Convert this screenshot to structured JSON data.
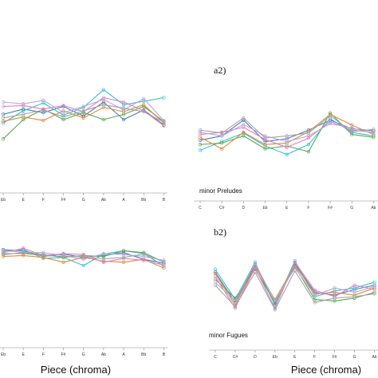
{
  "chart_data": [
    {
      "type": "line",
      "id": "a1",
      "label": "",
      "caption": "",
      "xlabel": "",
      "categories": [
        "Eb",
        "E",
        "F",
        "F#",
        "G",
        "Ab",
        "A",
        "Bb",
        "B"
      ],
      "ylim": [
        0,
        10
      ],
      "series": [
        {
          "color": "#4a7ab8",
          "values": [
            5.6,
            6.2,
            5.8,
            6.5,
            5.4,
            7.0,
            5.0,
            6.1,
            4.4
          ]
        },
        {
          "color": "#33c3d6",
          "values": [
            4.6,
            6.0,
            6.9,
            5.5,
            6.4,
            8.4,
            6.7,
            7.1,
            7.5
          ]
        },
        {
          "color": "#5aaa50",
          "values": [
            2.8,
            5.0,
            6.2,
            5.0,
            5.8,
            5.0,
            5.6,
            6.5,
            4.8
          ]
        },
        {
          "color": "#e08a3c",
          "values": [
            4.8,
            5.3,
            4.9,
            6.0,
            5.2,
            6.4,
            5.9,
            6.7,
            4.6
          ]
        },
        {
          "color": "#e27dc3",
          "values": [
            6.5,
            6.6,
            6.2,
            6.6,
            5.9,
            7.5,
            7.0,
            6.0,
            4.3
          ]
        },
        {
          "color": "#b8a8d8",
          "values": [
            7.0,
            6.8,
            7.2,
            5.8,
            6.5,
            7.3,
            6.1,
            7.4,
            4.9
          ]
        },
        {
          "color": "#a4a4a4",
          "values": [
            5.2,
            5.6,
            6.1,
            5.3,
            6.0,
            6.7,
            6.3,
            5.9,
            4.7
          ]
        }
      ]
    },
    {
      "type": "line",
      "id": "a2",
      "label": "a2)",
      "caption": "minor Preludes",
      "xlabel": "Piece (chroma)",
      "categories": [
        "C",
        "C#",
        "D",
        "Eb",
        "E",
        "F",
        "F#",
        "G",
        "Ab"
      ],
      "ylim": [
        0,
        10
      ],
      "series": [
        {
          "color": "#4a7ab8",
          "values": [
            3.8,
            4.4,
            6.6,
            3.6,
            4.0,
            5.2,
            6.6,
            5.4,
            5.1
          ]
        },
        {
          "color": "#33c3d6",
          "values": [
            2.4,
            3.6,
            4.8,
            3.0,
            1.8,
            3.2,
            6.8,
            4.9,
            4.4
          ]
        },
        {
          "color": "#5aaa50",
          "values": [
            3.2,
            3.4,
            4.4,
            2.6,
            3.0,
            2.2,
            7.6,
            4.6,
            4.2
          ]
        },
        {
          "color": "#e08a3c",
          "values": [
            4.2,
            2.6,
            4.9,
            3.2,
            3.4,
            5.0,
            7.4,
            5.9,
            4.6
          ]
        },
        {
          "color": "#e27dc3",
          "values": [
            4.6,
            4.9,
            5.6,
            3.9,
            2.8,
            4.1,
            6.4,
            5.2,
            4.9
          ]
        },
        {
          "color": "#b8a8d8",
          "values": [
            4.9,
            4.4,
            6.0,
            4.4,
            3.6,
            4.4,
            6.1,
            5.5,
            4.8
          ]
        },
        {
          "color": "#a4a4a4",
          "values": [
            5.2,
            4.8,
            6.9,
            4.1,
            4.4,
            4.8,
            7.2,
            5.0,
            5.3
          ]
        }
      ]
    },
    {
      "type": "line",
      "id": "b1",
      "label": "",
      "caption": "",
      "xlabel": "Piece (chroma)",
      "categories": [
        "Eb",
        "E",
        "F",
        "F#",
        "G",
        "Ab",
        "A",
        "Bb",
        "B"
      ],
      "ylim": [
        0,
        10
      ],
      "series": [
        {
          "color": "#4a7ab8",
          "values": [
            7.8,
            7.6,
            6.4,
            6.9,
            6.2,
            6.6,
            7.2,
            5.8,
            5.0
          ]
        },
        {
          "color": "#33c3d6",
          "values": [
            7.4,
            7.9,
            6.0,
            6.2,
            4.5,
            6.9,
            7.6,
            7.0,
            4.4
          ]
        },
        {
          "color": "#5aaa50",
          "values": [
            6.8,
            7.2,
            6.8,
            6.2,
            6.6,
            6.4,
            7.6,
            7.2,
            5.2
          ]
        },
        {
          "color": "#e08a3c",
          "values": [
            6.4,
            6.6,
            6.2,
            5.2,
            6.2,
            5.4,
            5.2,
            5.8,
            4.0
          ]
        },
        {
          "color": "#e27dc3",
          "values": [
            7.2,
            8.1,
            6.6,
            7.0,
            6.8,
            5.2,
            6.0,
            5.6,
            4.6
          ]
        },
        {
          "color": "#b8a8d8",
          "values": [
            7.6,
            7.3,
            7.2,
            6.6,
            5.8,
            7.0,
            6.8,
            6.4,
            5.6
          ]
        },
        {
          "color": "#a4a4a4",
          "values": [
            7.0,
            7.0,
            6.6,
            6.4,
            6.4,
            5.9,
            6.2,
            6.9,
            5.3
          ]
        }
      ]
    },
    {
      "type": "line",
      "id": "b2",
      "label": "b2)",
      "caption": "minor Fugues",
      "xlabel": "Piece (chroma)",
      "categories": [
        "C",
        "C#",
        "D",
        "Eb",
        "E",
        "F",
        "F#",
        "G",
        "Ab"
      ],
      "ylim": [
        0,
        10
      ],
      "series": [
        {
          "color": "#4a7ab8",
          "values": [
            7.4,
            3.2,
            8.4,
            3.0,
            8.6,
            4.6,
            4.2,
            5.0,
            5.6
          ]
        },
        {
          "color": "#33c3d6",
          "values": [
            7.8,
            3.6,
            8.8,
            2.8,
            9.0,
            4.0,
            4.8,
            5.2,
            6.0
          ]
        },
        {
          "color": "#5aaa50",
          "values": [
            6.4,
            3.8,
            7.8,
            3.2,
            8.2,
            3.6,
            3.4,
            3.8,
            4.6
          ]
        },
        {
          "color": "#e08a3c",
          "values": [
            7.2,
            2.8,
            8.2,
            3.6,
            8.4,
            4.4,
            4.6,
            4.2,
            5.2
          ]
        },
        {
          "color": "#e27dc3",
          "values": [
            6.8,
            2.4,
            8.0,
            2.4,
            8.8,
            4.9,
            4.0,
            5.6,
            5.0
          ]
        },
        {
          "color": "#b8a8d8",
          "values": [
            6.0,
            3.4,
            8.6,
            3.4,
            8.0,
            4.2,
            5.2,
            4.6,
            5.4
          ]
        },
        {
          "color": "#a4a4a4",
          "values": [
            5.6,
            2.6,
            7.4,
            2.2,
            7.6,
            3.2,
            3.8,
            4.0,
            4.4
          ]
        }
      ]
    }
  ]
}
